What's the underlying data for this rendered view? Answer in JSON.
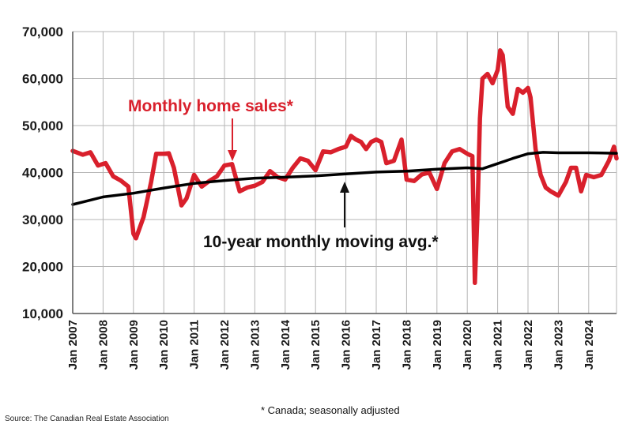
{
  "chart_data": {
    "type": "line",
    "x_tick_labels": [
      "Jan 2007",
      "Jan 2008",
      "Jan 2009",
      "Jan 2010",
      "Jan 2011",
      "Jan 2012",
      "Jan 2013",
      "Jan 2014",
      "Jan 2015",
      "Jan 2016",
      "Jan 2017",
      "Jan 2018",
      "Jan 2019",
      "Jan 2020",
      "Jan 2021",
      "Jan 2022",
      "Jan 2023",
      "Jan 2024"
    ],
    "y_tick_labels": [
      "10,000",
      "20,000",
      "30,000",
      "40,000",
      "50,000",
      "60,000",
      "70,000"
    ],
    "ylim": [
      10000,
      70000
    ],
    "xlim": [
      "2007-01",
      "2024-12"
    ],
    "grid": true,
    "series": [
      {
        "name": "Monthly home sales*",
        "color": "#d9202c",
        "points": [
          [
            "2007-01",
            44600
          ],
          [
            "2007-05",
            43800
          ],
          [
            "2007-08",
            44300
          ],
          [
            "2007-11",
            41500
          ],
          [
            "2008-02",
            42000
          ],
          [
            "2008-05",
            39200
          ],
          [
            "2008-08",
            38300
          ],
          [
            "2008-11",
            37000
          ],
          [
            "2009-01",
            27000
          ],
          [
            "2009-02",
            26000
          ],
          [
            "2009-05",
            30500
          ],
          [
            "2009-08",
            38000
          ],
          [
            "2009-10",
            44000
          ],
          [
            "2010-01",
            44000
          ],
          [
            "2010-03",
            44100
          ],
          [
            "2010-05",
            41000
          ],
          [
            "2010-08",
            33000
          ],
          [
            "2010-10",
            34500
          ],
          [
            "2011-01",
            39500
          ],
          [
            "2011-04",
            37000
          ],
          [
            "2011-07",
            38200
          ],
          [
            "2011-10",
            39200
          ],
          [
            "2012-01",
            41500
          ],
          [
            "2012-04",
            41800
          ],
          [
            "2012-07",
            36000
          ],
          [
            "2012-10",
            36800
          ],
          [
            "2013-01",
            37200
          ],
          [
            "2013-04",
            38000
          ],
          [
            "2013-07",
            40300
          ],
          [
            "2013-10",
            39000
          ],
          [
            "2014-01",
            38500
          ],
          [
            "2014-04",
            41000
          ],
          [
            "2014-07",
            43000
          ],
          [
            "2014-10",
            42500
          ],
          [
            "2015-01",
            40500
          ],
          [
            "2015-04",
            44500
          ],
          [
            "2015-07",
            44300
          ],
          [
            "2015-10",
            45000
          ],
          [
            "2016-01",
            45500
          ],
          [
            "2016-03",
            47800
          ],
          [
            "2016-05",
            47000
          ],
          [
            "2016-07",
            46500
          ],
          [
            "2016-09",
            45000
          ],
          [
            "2016-11",
            46500
          ],
          [
            "2017-01",
            47000
          ],
          [
            "2017-03",
            46500
          ],
          [
            "2017-05",
            42000
          ],
          [
            "2017-08",
            42500
          ],
          [
            "2017-11",
            47000
          ],
          [
            "2018-01",
            38500
          ],
          [
            "2018-04",
            38200
          ],
          [
            "2018-07",
            39600
          ],
          [
            "2018-10",
            40000
          ],
          [
            "2019-01",
            36500
          ],
          [
            "2019-04",
            42000
          ],
          [
            "2019-07",
            44500
          ],
          [
            "2019-10",
            45000
          ],
          [
            "2020-01",
            44000
          ],
          [
            "2020-03",
            43500
          ],
          [
            "2020-04",
            16500
          ],
          [
            "2020-05",
            31000
          ],
          [
            "2020-06",
            51500
          ],
          [
            "2020-07",
            60000
          ],
          [
            "2020-09",
            61000
          ],
          [
            "2020-11",
            59000
          ],
          [
            "2021-01",
            61800
          ],
          [
            "2021-02",
            66000
          ],
          [
            "2021-03",
            65000
          ],
          [
            "2021-05",
            54000
          ],
          [
            "2021-07",
            52500
          ],
          [
            "2021-09",
            57800
          ],
          [
            "2021-11",
            57000
          ],
          [
            "2022-01",
            58000
          ],
          [
            "2022-02",
            56000
          ],
          [
            "2022-04",
            45000
          ],
          [
            "2022-06",
            39500
          ],
          [
            "2022-08",
            36800
          ],
          [
            "2022-10",
            36000
          ],
          [
            "2023-01",
            35100
          ],
          [
            "2023-04",
            38000
          ],
          [
            "2023-06",
            41000
          ],
          [
            "2023-08",
            41000
          ],
          [
            "2023-10",
            36000
          ],
          [
            "2023-12",
            39500
          ],
          [
            "2024-03",
            39000
          ],
          [
            "2024-06",
            39500
          ],
          [
            "2024-09",
            42500
          ],
          [
            "2024-11",
            45500
          ],
          [
            "2024-12",
            43000
          ]
        ]
      },
      {
        "name": "10-year monthly moving avg.*",
        "color": "#000000",
        "points": [
          [
            "2007-01",
            33200
          ],
          [
            "2008-01",
            34800
          ],
          [
            "2009-01",
            35600
          ],
          [
            "2010-01",
            36700
          ],
          [
            "2011-01",
            37700
          ],
          [
            "2012-01",
            38300
          ],
          [
            "2013-01",
            38800
          ],
          [
            "2014-01",
            39000
          ],
          [
            "2015-01",
            39300
          ],
          [
            "2016-01",
            39700
          ],
          [
            "2017-01",
            40100
          ],
          [
            "2018-01",
            40300
          ],
          [
            "2019-01",
            40700
          ],
          [
            "2020-01",
            41000
          ],
          [
            "2020-07",
            40800
          ],
          [
            "2021-01",
            41900
          ],
          [
            "2021-07",
            43000
          ],
          [
            "2022-01",
            44000
          ],
          [
            "2022-07",
            44300
          ],
          [
            "2023-01",
            44200
          ],
          [
            "2024-01",
            44200
          ],
          [
            "2024-12",
            44100
          ]
        ]
      }
    ],
    "annotations": {
      "monthly_label": "Monthly home sales*",
      "avg_label": "10-year monthly moving avg.*"
    },
    "colors": {
      "sales": "#d9202c",
      "average": "#000000",
      "grid": "#b5b5b5"
    }
  },
  "footnote": "* Canada; seasonally adjusted",
  "source": "Source: The Canadian Real Estate Association"
}
